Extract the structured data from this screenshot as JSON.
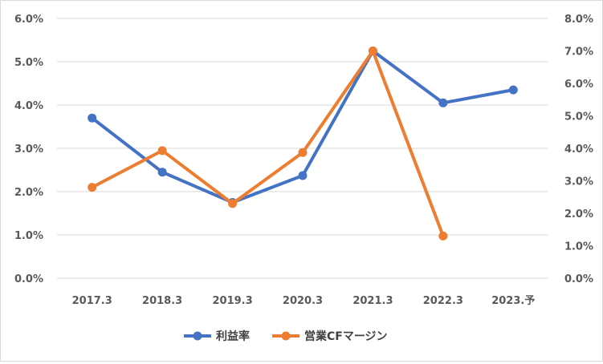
{
  "chart_data": {
    "type": "line",
    "categories": [
      "2017.3",
      "2018.3",
      "2019.3",
      "2020.3",
      "2021.3",
      "2022.3",
      "2023.予"
    ],
    "y_left": {
      "ylim": [
        0,
        6
      ],
      "ticks": [
        "0.0%",
        "1.0%",
        "2.0%",
        "3.0%",
        "4.0%",
        "5.0%",
        "6.0%"
      ]
    },
    "y_right": {
      "ylim": [
        0,
        8
      ],
      "ticks": [
        "0.0%",
        "1.0%",
        "2.0%",
        "3.0%",
        "4.0%",
        "5.0%",
        "6.0%",
        "7.0%",
        "8.0%"
      ]
    },
    "series": [
      {
        "name": "利益率",
        "axis": "left",
        "color": "#4472C4",
        "values": [
          3.7,
          2.45,
          1.75,
          2.37,
          5.25,
          4.05,
          4.35
        ]
      },
      {
        "name": "営業CFマージン",
        "axis": "right",
        "color": "#ED7D31",
        "values": [
          2.8,
          3.93,
          2.3,
          3.87,
          7.0,
          1.3,
          null
        ]
      }
    ],
    "grid": true,
    "legend": "bottom"
  }
}
